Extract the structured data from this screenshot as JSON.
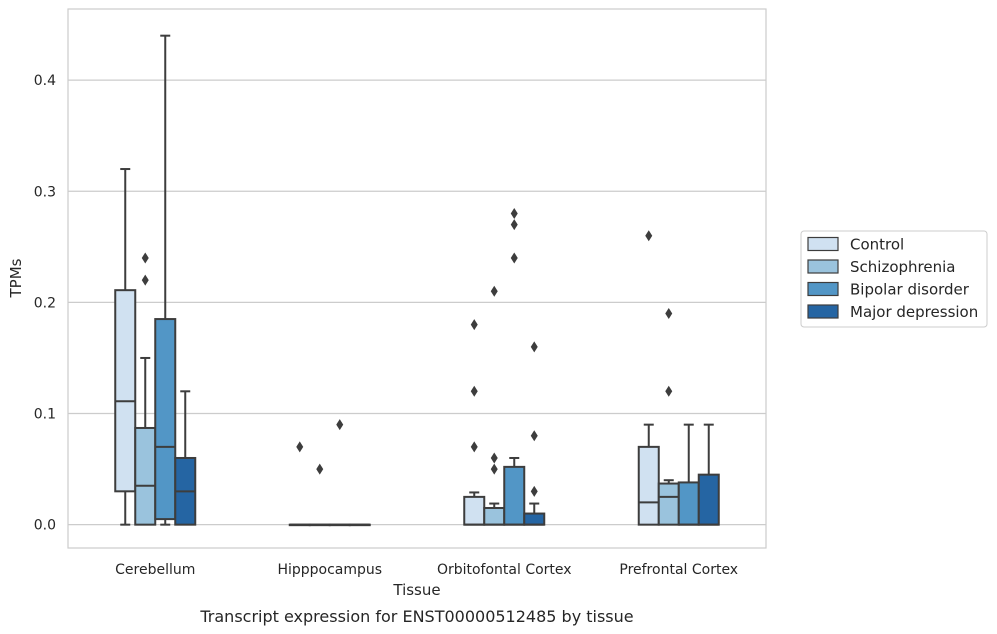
{
  "caption": "Transcript expression for ENST00000512485 by tissue",
  "chart_data": {
    "type": "box",
    "xlabel": "Tissue",
    "ylabel": "TPMs",
    "ylim": [
      -0.021,
      0.464
    ],
    "yticks": [
      0.0,
      0.1,
      0.2,
      0.3,
      0.4
    ],
    "ytick_labels": [
      "0.0",
      "0.1",
      "0.2",
      "0.3",
      "0.4"
    ],
    "grid": "horizontal",
    "legend_position": "right",
    "categories": [
      "Cerebellum",
      "Hipppocampus",
      "Orbitofontal Cortex",
      "Prefrontal Cortex"
    ],
    "series": [
      {
        "name": "Control",
        "color": "#d0e1f1",
        "boxes": [
          {
            "whislo": 0.0,
            "q1": 0.03,
            "med": 0.111,
            "q3": 0.211,
            "whishi": 0.32,
            "fliers": []
          },
          {
            "whislo": 0.0,
            "q1": 0.0,
            "med": 0.0,
            "q3": 0.0,
            "whishi": 0.0,
            "fliers": [
              0.07
            ]
          },
          {
            "whislo": 0.0,
            "q1": 0.0,
            "med": 0.0,
            "q3": 0.025,
            "whishi": 0.029,
            "fliers": [
              0.18,
              0.12,
              0.07
            ]
          },
          {
            "whislo": 0.0,
            "q1": 0.0,
            "med": 0.02,
            "q3": 0.07,
            "whishi": 0.09,
            "fliers": [
              0.26
            ]
          }
        ]
      },
      {
        "name": "Schizophrenia",
        "color": "#9ac3dd",
        "boxes": [
          {
            "whislo": 0.0,
            "q1": 0.0,
            "med": 0.035,
            "q3": 0.087,
            "whishi": 0.15,
            "fliers": [
              0.24,
              0.22
            ]
          },
          {
            "whislo": 0.0,
            "q1": 0.0,
            "med": 0.0,
            "q3": 0.0,
            "whishi": 0.0,
            "fliers": [
              0.05
            ]
          },
          {
            "whislo": 0.0,
            "q1": 0.0,
            "med": 0.0,
            "q3": 0.015,
            "whishi": 0.019,
            "fliers": [
              0.21,
              0.06,
              0.05
            ]
          },
          {
            "whislo": 0.0,
            "q1": 0.0,
            "med": 0.025,
            "q3": 0.037,
            "whishi": 0.04,
            "fliers": [
              0.19,
              0.12
            ]
          }
        ]
      },
      {
        "name": "Bipolar disorder",
        "color": "#5296c6",
        "boxes": [
          {
            "whislo": 0.0,
            "q1": 0.005,
            "med": 0.07,
            "q3": 0.185,
            "whishi": 0.44,
            "fliers": []
          },
          {
            "whislo": 0.0,
            "q1": 0.0,
            "med": 0.0,
            "q3": 0.0,
            "whishi": 0.0,
            "fliers": [
              0.09
            ]
          },
          {
            "whislo": 0.0,
            "q1": 0.0,
            "med": 0.0,
            "q3": 0.052,
            "whishi": 0.06,
            "fliers": [
              0.28,
              0.27,
              0.24
            ]
          },
          {
            "whislo": 0.0,
            "q1": 0.0,
            "med": 0.0,
            "q3": 0.038,
            "whishi": 0.09,
            "fliers": []
          }
        ]
      },
      {
        "name": "Major depression",
        "color": "#2565a3",
        "boxes": [
          {
            "whislo": 0.0,
            "q1": 0.0,
            "med": 0.03,
            "q3": 0.06,
            "whishi": 0.12,
            "fliers": []
          },
          {
            "whislo": 0.0,
            "q1": 0.0,
            "med": 0.0,
            "q3": 0.0,
            "whishi": 0.0,
            "fliers": []
          },
          {
            "whislo": 0.0,
            "q1": 0.0,
            "med": 0.0,
            "q3": 0.01,
            "whishi": 0.019,
            "fliers": [
              0.16,
              0.08,
              0.03
            ]
          },
          {
            "whislo": 0.0,
            "q1": 0.0,
            "med": 0.0,
            "q3": 0.045,
            "whishi": 0.09,
            "fliers": []
          }
        ]
      }
    ]
  }
}
